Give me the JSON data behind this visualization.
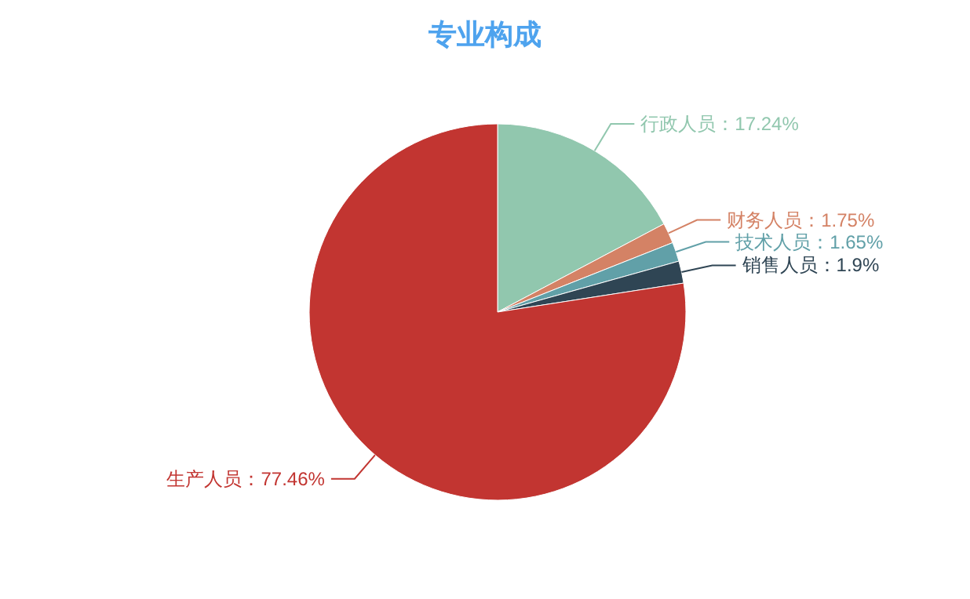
{
  "chart_data": {
    "type": "pie",
    "title": "专业构成",
    "categories": [
      "行政人员",
      "财务人员",
      "技术人员",
      "销售人员",
      "生产人员"
    ],
    "values": [
      17.24,
      1.75,
      1.65,
      1.9,
      77.46
    ],
    "value_labels": [
      "17.24%",
      "1.75%",
      "1.65%",
      "1.9%",
      "77.46%"
    ],
    "colors": [
      "#91c7ae",
      "#d48265",
      "#61a0a8",
      "#2f4554",
      "#c23531"
    ]
  }
}
